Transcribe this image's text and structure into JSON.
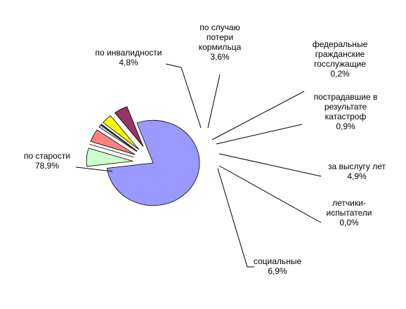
{
  "chart_data": {
    "type": "pie",
    "title": "",
    "slices": [
      {
        "label": [
          "по старости"
        ],
        "value_label": "78,9%",
        "value": 78.9,
        "color": "#9999ff",
        "exploded": false
      },
      {
        "label": [
          "социальные"
        ],
        "value_label": "6,9%",
        "value": 6.9,
        "color": "#ccffcc",
        "exploded": true
      },
      {
        "label": [
          "летчики-",
          "испытатели"
        ],
        "value_label": "0,0%",
        "value": 0.0,
        "color": "#ccffcc",
        "exploded": true
      },
      {
        "label": [
          "за выслугу лет"
        ],
        "value_label": "4,9%",
        "value": 4.9,
        "color": "#ff8080",
        "exploded": true
      },
      {
        "label": [
          "пострадавшие  в",
          "результате",
          "катастроф"
        ],
        "value_label": "0,9%",
        "value": 0.9,
        "color": "#ccccff",
        "exploded": true
      },
      {
        "label": [
          "федеральные",
          "гражданские",
          "госслужащие"
        ],
        "value_label": "0,2%",
        "value": 0.2,
        "color": "#cc00cc",
        "exploded": true
      },
      {
        "label": [
          "по случаю",
          "потери",
          "кормильца"
        ],
        "value_label": "3,6%",
        "value": 3.6,
        "color": "#ffff00",
        "exploded": true
      },
      {
        "label": [
          "по инвалидности"
        ],
        "value_label": "4,8%",
        "value": 4.8,
        "color": "#993366",
        "exploded": true
      }
    ],
    "legend": "none"
  }
}
